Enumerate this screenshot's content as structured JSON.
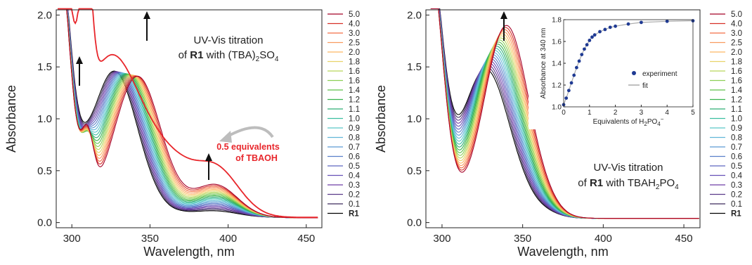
{
  "chart_data": [
    {
      "type": "line",
      "title": "",
      "xlabel": "Wavelength, nm",
      "ylabel": "Absorbance",
      "xlim": [
        290,
        460
      ],
      "ylim": [
        -0.05,
        2.05
      ],
      "xticks": [
        "300",
        "350",
        "400",
        "450"
      ],
      "yticks": [
        "0.0",
        "0.5",
        "1.0",
        "1.5",
        "2.0"
      ],
      "annotation_line1": "UV-Vis titration",
      "annotation_line2_a": "of ",
      "annotation_line2_b": "R1",
      "annotation_line2_c": " with (TBA)",
      "annotation_line2_sub": "2",
      "annotation_line2_d": "SO",
      "annotation_line2_sub2": "4",
      "red_label_line1": "0.5 equivalents",
      "red_label_line2": "of TBAOH",
      "legend": [
        "5.0",
        "4.0",
        "3.0",
        "2.5",
        "2.0",
        "1.8",
        "1.6",
        "1.6",
        "1.4",
        "1.2",
        "1.1",
        "1.0",
        "0.9",
        "0.8",
        "0.7",
        "0.6",
        "0.5",
        "0.4",
        "0.3",
        "0.2",
        "0.1",
        "R1"
      ],
      "legend_colors": [
        "#a50026",
        "#d73027",
        "#f46d43",
        "#f99b5f",
        "#fdb863",
        "#e9d36a",
        "#b8d65b",
        "#8ccf55",
        "#5ec04a",
        "#38b34d",
        "#2fae74",
        "#3bbfa0",
        "#5ac8c8",
        "#62b6d8",
        "#5c9bd3",
        "#5a7fca",
        "#5d66c0",
        "#6650b6",
        "#6f3fa8",
        "#5a3a8a",
        "#3e2b5c",
        "#000000"
      ],
      "highlight_series": "0.5 equivalents of TBAOH",
      "highlight_color": "#e8262b"
    },
    {
      "type": "line",
      "title": "",
      "xlabel": "Wavelength, nm",
      "ylabel": "Absorbance",
      "xlim": [
        290,
        460
      ],
      "ylim": [
        -0.05,
        2.05
      ],
      "xticks": [
        "300",
        "350",
        "400",
        "450"
      ],
      "yticks": [
        "0.0",
        "0.5",
        "1.0",
        "1.5",
        "2.0"
      ],
      "annotation_line1": "UV-Vis titration",
      "annotation_line2_a": "of ",
      "annotation_line2_b": "R1",
      "annotation_line2_c": " with TBAH",
      "annotation_line2_sub": "2",
      "annotation_line2_d": "PO",
      "annotation_line2_sub2": "4",
      "legend": [
        "5.0",
        "4.0",
        "3.0",
        "2.5",
        "2.0",
        "1.8",
        "1.6",
        "1.6",
        "1.4",
        "1.2",
        "1.1",
        "1.0",
        "0.9",
        "0.8",
        "0.7",
        "0.6",
        "0.5",
        "0.4",
        "0.3",
        "0.2",
        "0.1",
        "R1"
      ],
      "legend_colors": [
        "#a50026",
        "#d73027",
        "#f46d43",
        "#f99b5f",
        "#fdb863",
        "#e9d36a",
        "#b8d65b",
        "#8ccf55",
        "#5ec04a",
        "#38b34d",
        "#2fae74",
        "#3bbfa0",
        "#5ac8c8",
        "#62b6d8",
        "#5c9bd3",
        "#5a7fca",
        "#5d66c0",
        "#6650b6",
        "#6f3fa8",
        "#5a3a8a",
        "#3e2b5c",
        "#000000"
      ]
    },
    {
      "type": "scatter",
      "title": "",
      "xlabel_a": "Equivalents of H",
      "xlabel_sub1": "2",
      "xlabel_b": "PO",
      "xlabel_sub2": "4",
      "xlabel_sup": "−",
      "ylabel": "Absorbance at 340 nm",
      "xlim": [
        0,
        5
      ],
      "ylim": [
        1.0,
        1.8
      ],
      "xticks": [
        "0",
        "1",
        "2",
        "3",
        "4",
        "5"
      ],
      "yticks": [
        "1.0",
        "1.2",
        "1.4",
        "1.6",
        "1.8"
      ],
      "series": [
        {
          "name": "experiment",
          "x": [
            0,
            0.1,
            0.2,
            0.3,
            0.4,
            0.5,
            0.6,
            0.7,
            0.8,
            0.9,
            1.0,
            1.1,
            1.2,
            1.4,
            1.6,
            1.8,
            2.0,
            2.5,
            3.0,
            4.0,
            5.0
          ],
          "y": [
            1.02,
            1.08,
            1.15,
            1.22,
            1.29,
            1.36,
            1.42,
            1.48,
            1.53,
            1.57,
            1.61,
            1.64,
            1.66,
            1.69,
            1.71,
            1.73,
            1.74,
            1.76,
            1.775,
            1.785,
            1.79
          ],
          "color": "#1f3a93"
        },
        {
          "name": "fit",
          "color": "#aaaaaa"
        }
      ],
      "legend_position": "center-right"
    }
  ]
}
